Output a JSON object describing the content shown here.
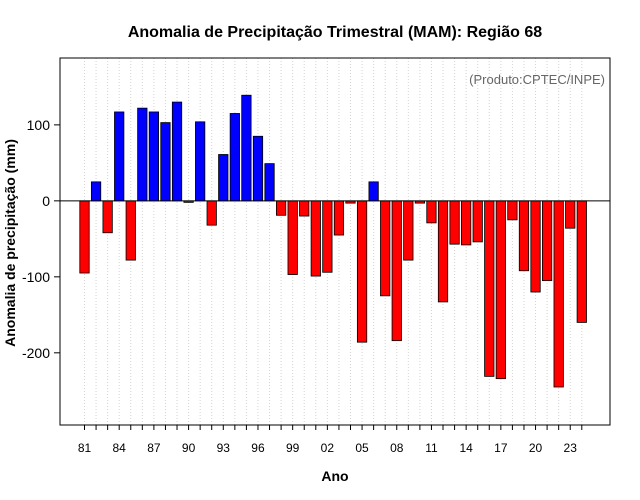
{
  "chart_data": {
    "type": "bar",
    "title": "Anomalia de Precipitação Trimestral (MAM): Região 68",
    "xlabel": "Ano",
    "ylabel": "Anomalia de precipitação (mm)",
    "annotation": "(Produto:CPTEC/INPE)",
    "ylim": [
      -295,
      188
    ],
    "yticks": [
      -200,
      -100,
      0,
      100
    ],
    "grid": "vertical dotted",
    "xtick_labels": [
      "81",
      "84",
      "87",
      "90",
      "93",
      "96",
      "99",
      "02",
      "05",
      "08",
      "11",
      "14",
      "17",
      "20",
      "23"
    ],
    "categories": [
      "1981",
      "1982",
      "1983",
      "1984",
      "1985",
      "1986",
      "1987",
      "1988",
      "1989",
      "1990",
      "1991",
      "1992",
      "1993",
      "1994",
      "1995",
      "1996",
      "1997",
      "1998",
      "1999",
      "2000",
      "2001",
      "2002",
      "2003",
      "2004",
      "2005",
      "2006",
      "2007",
      "2008",
      "2009",
      "2010",
      "2011",
      "2012",
      "2013",
      "2014",
      "2015",
      "2016",
      "2017",
      "2018",
      "2019",
      "2020",
      "2021",
      "2022",
      "2023",
      "2024"
    ],
    "values": [
      -95,
      25,
      -42,
      117,
      -78,
      122,
      117,
      103,
      130,
      -2,
      104,
      -32,
      61,
      115,
      139,
      85,
      49,
      -19,
      -97,
      -20,
      -99,
      -94,
      -45,
      -3,
      -186,
      25,
      -125,
      -184,
      -78,
      -3,
      -29,
      -133,
      -57,
      -58,
      -54,
      -231,
      -234,
      -25,
      -92,
      -120,
      -105,
      -245,
      -36,
      -160
    ],
    "positive_color": "#0000ff",
    "negative_color": "#ff0000"
  }
}
